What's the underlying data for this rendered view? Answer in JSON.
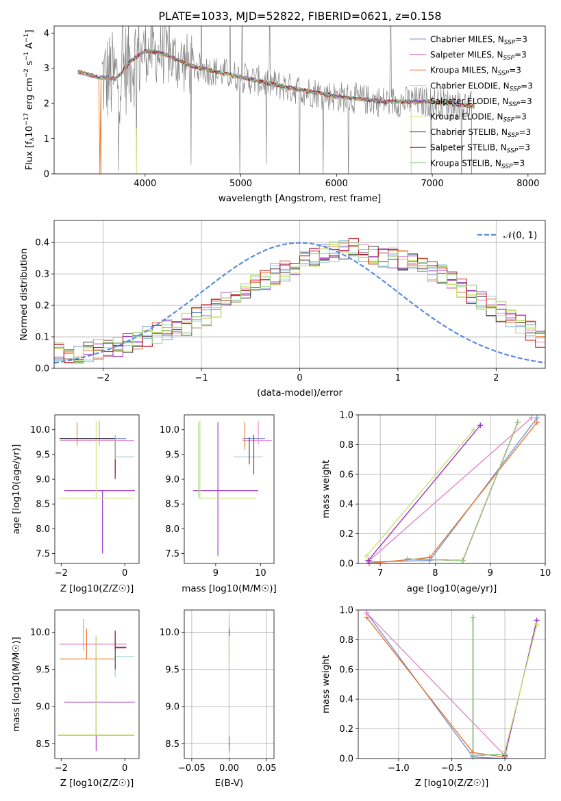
{
  "title": "PLATE=1033, MJD=52822, FIBERID=0621, z=0.158",
  "colors": {
    "chabrier_miles": "#6f94dc",
    "salpeter_miles": "#e286c5",
    "kroupa_miles": "#e8762b",
    "chabrier_elodie": "#8fcad6",
    "salpeter_elodie": "#9b30c5",
    "kroupa_elodie": "#c9e46f",
    "chabrier_stelib": "#3f3f3f",
    "salpeter_stelib": "#c0161f",
    "kroupa_stelib": "#9bd08a",
    "data": "#808080",
    "gaussian": "#5b8be0"
  },
  "chart_data": [
    {
      "id": "spectrum",
      "type": "line",
      "xlabel": "wavelength [Angstrom, rest frame]",
      "ylabel": "Flux [f_λ 10^-17 erg cm^-2 s^-1 A^-1]",
      "xlim": [
        3050,
        8180
      ],
      "ylim": [
        0,
        4.2
      ],
      "xticks": [
        "4000",
        "5000",
        "6000",
        "7000",
        "8000"
      ],
      "yticks": [
        "0",
        "1",
        "2",
        "3",
        "4"
      ],
      "legend": [
        {
          "label": "Chabrier MILES, N",
          "sub": "SSP",
          "tail": "=3",
          "color": "chabrier_miles"
        },
        {
          "label": "Salpeter MILES, N",
          "sub": "SSP",
          "tail": "=3",
          "color": "salpeter_miles"
        },
        {
          "label": "Kroupa MILES, N",
          "sub": "SSP",
          "tail": "=3",
          "color": "kroupa_miles"
        },
        {
          "label": "Chabrier ELODIE, N",
          "sub": "SSP",
          "tail": "=3",
          "color": "chabrier_elodie"
        },
        {
          "label": "Salpeter ELODIE, N",
          "sub": "SSP",
          "tail": "=3",
          "color": "salpeter_elodie"
        },
        {
          "label": "Kroupa ELODIE, N",
          "sub": "SSP",
          "tail": "=3",
          "color": "kroupa_elodie"
        },
        {
          "label": "Chabrier STELIB, N",
          "sub": "SSP",
          "tail": "=3",
          "color": "chabrier_stelib"
        },
        {
          "label": "Salpeter STELIB, N",
          "sub": "SSP",
          "tail": "=3",
          "color": "salpeter_stelib"
        },
        {
          "label": "Kroupa STELIB, N",
          "sub": "SSP",
          "tail": "=3",
          "color": "kroupa_stelib"
        }
      ],
      "legend_loc": "right",
      "model_curve": {
        "x": [
          3300,
          3500,
          3700,
          3850,
          3900,
          4000,
          4200,
          4500,
          5000,
          5500,
          6000,
          6500,
          7000,
          7500
        ],
        "y": [
          2.9,
          2.75,
          2.7,
          3.2,
          3.3,
          3.5,
          3.4,
          3.05,
          2.75,
          2.45,
          2.2,
          2.05,
          2.05,
          1.9
        ]
      },
      "miles_model_range": [
        3540,
        7410
      ],
      "data_range": [
        3550,
        7410
      ],
      "kroupa_elodie_low_range": [
        3910,
        6780
      ]
    },
    {
      "id": "residual_hist",
      "type": "line",
      "xlabel": "(data-model)/error",
      "ylabel": "Normed distribution",
      "xlim": [
        -2.5,
        2.5
      ],
      "ylim": [
        0,
        0.47
      ],
      "xticks": [
        "−2",
        "−1",
        "0",
        "1",
        "2"
      ],
      "yticks": [
        "0.0",
        "0.1",
        "0.2",
        "0.3",
        "0.4"
      ],
      "legend": [
        {
          "label": "𝒩(0, 1)",
          "color": "gaussian"
        }
      ],
      "legend_loc": "upper right",
      "bin_width": 0.1,
      "mean_hist": [
        0.05,
        0.04,
        0.05,
        0.05,
        0.06,
        0.06,
        0.07,
        0.08,
        0.09,
        0.1,
        0.11,
        0.12,
        0.13,
        0.14,
        0.16,
        0.17,
        0.19,
        0.21,
        0.23,
        0.25,
        0.27,
        0.28,
        0.3,
        0.31,
        0.33,
        0.34,
        0.35,
        0.36,
        0.37,
        0.38,
        0.38,
        0.37,
        0.36,
        0.35,
        0.35,
        0.34,
        0.33,
        0.32,
        0.31,
        0.3,
        0.28,
        0.26,
        0.24,
        0.22,
        0.2,
        0.18,
        0.16,
        0.14,
        0.12,
        0.1,
        0.09,
        0.08,
        0.07,
        0.06,
        0.05,
        0.05,
        0.04,
        0.04,
        0.03,
        0.03
      ]
    },
    {
      "id": "age_vs_Z",
      "type": "scatter",
      "xlabel": "Z [log10(Z/Z☉)]",
      "ylabel": "age  [log10(age/yr)]",
      "xlim": [
        -2.2,
        0.45
      ],
      "ylim": [
        7.3,
        10.3
      ],
      "xticks": [
        "−2",
        "0"
      ],
      "yticks": [
        "7.5",
        "8.0",
        "8.5",
        "9.0",
        "9.5",
        "10.0"
      ],
      "points": [
        {
          "m": "chabrier_miles",
          "x": -0.9,
          "y": 9.82,
          "xl": -2.05,
          "xr": 0.05,
          "yl": 9.82,
          "yh": 9.82
        },
        {
          "m": "salpeter_miles",
          "x": -0.8,
          "y": 9.78,
          "xl": -2.05,
          "xr": 0.3,
          "yl": 9.68,
          "yh": 10.18
        },
        {
          "m": "kroupa_miles",
          "x": -1.5,
          "y": 9.8,
          "xl": -1.5,
          "xr": -1.5,
          "yl": 9.68,
          "yh": 10.15
        },
        {
          "m": "chabrier_elodie",
          "x": -0.3,
          "y": 9.45,
          "xl": -0.3,
          "xr": 0.3,
          "yl": 9.1,
          "yh": 9.9
        },
        {
          "m": "salpeter_elodie",
          "x": -0.7,
          "y": 8.77,
          "xl": -1.9,
          "xr": 0.32,
          "yl": 7.5,
          "yh": 8.77
        },
        {
          "m": "kroupa_elodie",
          "x": -0.9,
          "y": 8.62,
          "xl": -2.1,
          "xr": 0.3,
          "yl": 8.62,
          "yh": 10.18
        },
        {
          "m": "chabrier_stelib",
          "x": -0.3,
          "y": 9.82,
          "xl": -2.05,
          "xr": -0.3,
          "yl": 9.0,
          "yh": 9.82
        },
        {
          "m": "salpeter_stelib",
          "x": -0.3,
          "y": 9.8,
          "xl": -0.3,
          "xr": -0.3,
          "yl": 9.05,
          "yh": 9.85
        },
        {
          "m": "kroupa_stelib",
          "x": -0.3,
          "y": 9.45,
          "xl": -0.3,
          "xr": -0.3,
          "yl": 9.4,
          "yh": 9.9
        }
      ]
    },
    {
      "id": "age_vs_mass",
      "type": "scatter",
      "xlabel": "mass [log10(M/M☉)]",
      "ylabel": "",
      "xlim": [
        8.3,
        10.3
      ],
      "ylim": [
        7.3,
        10.3
      ],
      "xticks": [
        "9",
        "10"
      ],
      "yticks": [
        "7.5",
        "8.0",
        "8.5",
        "9.0",
        "9.5",
        "10.0"
      ],
      "points": [
        {
          "m": "chabrier_miles",
          "x": 9.9,
          "y": 9.82,
          "xl": 9.6,
          "xr": 10.1,
          "yl": 9.82,
          "yh": 9.82
        },
        {
          "m": "salpeter_miles",
          "x": 9.95,
          "y": 9.78,
          "xl": 9.6,
          "xr": 10.25,
          "yl": 9.7,
          "yh": 10.18
        },
        {
          "m": "kroupa_miles",
          "x": 9.65,
          "y": 9.8,
          "xl": 9.65,
          "xr": 9.65,
          "yl": 9.6,
          "yh": 10.15
        },
        {
          "m": "chabrier_elodie",
          "x": 9.7,
          "y": 9.45,
          "xl": 9.4,
          "xr": 10.05,
          "yl": 9.45,
          "yh": 9.45
        },
        {
          "m": "salpeter_elodie",
          "x": 9.05,
          "y": 8.77,
          "xl": 8.5,
          "xr": 9.95,
          "yl": 7.45,
          "yh": 10.15
        },
        {
          "m": "kroupa_elodie",
          "x": 8.65,
          "y": 8.62,
          "xl": 8.65,
          "xr": 9.9,
          "yl": 8.62,
          "yh": 10.18
        },
        {
          "m": "chabrier_stelib",
          "x": 9.75,
          "y": 9.8,
          "xl": 9.75,
          "xr": 9.75,
          "yl": 9.3,
          "yh": 9.85
        },
        {
          "m": "salpeter_stelib",
          "x": 9.85,
          "y": 9.8,
          "xl": 9.85,
          "xr": 9.85,
          "yl": 9.1,
          "yh": 9.9
        },
        {
          "m": "kroupa_stelib",
          "x": 8.62,
          "y": 8.62,
          "xl": 8.62,
          "xr": 8.62,
          "yl": 8.62,
          "yh": 10.15
        }
      ]
    },
    {
      "id": "massweight_vs_age",
      "type": "line",
      "xlabel": "age  [log10(age/yr)]",
      "ylabel": "mass weight",
      "xlim": [
        6.6,
        10
      ],
      "ylim": [
        0,
        1
      ],
      "xticks": [
        "7",
        "8",
        "9",
        "10"
      ],
      "yticks": [
        "0.0",
        "0.2",
        "0.4",
        "0.6",
        "0.8",
        "1.0"
      ],
      "series": [
        {
          "m": "chabrier_miles",
          "x": [
            6.8,
            7.9,
            9.85
          ],
          "y": [
            0.01,
            0.02,
            0.98
          ]
        },
        {
          "m": "salpeter_miles",
          "x": [
            6.8,
            9.75
          ],
          "y": [
            0.02,
            0.98
          ]
        },
        {
          "m": "kroupa_miles",
          "x": [
            6.8,
            7.9,
            9.85
          ],
          "y": [
            0.0,
            0.04,
            0.95
          ]
        },
        {
          "m": "chabrier_elodie",
          "x": [
            7.5,
            8.5,
            9.5
          ],
          "y": [
            0.03,
            0.02,
            0.95
          ]
        },
        {
          "m": "salpeter_elodie",
          "x": [
            6.78,
            8.82
          ],
          "y": [
            0.02,
            0.93
          ]
        },
        {
          "m": "kroupa_elodie",
          "x": [
            6.75,
            8.7
          ],
          "y": [
            0.05,
            0.9
          ]
        },
        {
          "m": "chabrier_stelib",
          "x": [
            7.5,
            8.5,
            9.5
          ],
          "y": [
            0.03,
            0.02,
            0.95
          ]
        },
        {
          "m": "salpeter_stelib",
          "x": [
            7.5,
            8.5,
            9.5
          ],
          "y": [
            0.03,
            0.02,
            0.95
          ]
        },
        {
          "m": "kroupa_stelib",
          "x": [
            7.5,
            8.5,
            9.5
          ],
          "y": [
            0.03,
            0.02,
            0.95
          ]
        }
      ]
    },
    {
      "id": "mass_vs_Z",
      "type": "scatter",
      "xlabel": "Z [log10(Z/Z☉)]",
      "ylabel": "mass [log10(M/M☉)]",
      "xlim": [
        -2.2,
        0.45
      ],
      "ylim": [
        8.3,
        10.3
      ],
      "xticks": [
        "−2",
        "0"
      ],
      "yticks": [
        "8.5",
        "9.0",
        "9.5",
        "10.0"
      ],
      "points": [
        {
          "m": "chabrier_miles",
          "x": -0.9,
          "y": 9.84,
          "xl": -2.05,
          "xr": 0.05,
          "yl": 9.84,
          "yh": 9.84
        },
        {
          "m": "salpeter_miles",
          "x": -1.3,
          "y": 9.84,
          "xl": -2.05,
          "xr": 0.05,
          "yl": 9.75,
          "yh": 10.18
        },
        {
          "m": "kroupa_miles",
          "x": -1.2,
          "y": 9.64,
          "xl": -2.05,
          "xr": -0.3,
          "yl": 9.64,
          "yh": 10.05
        },
        {
          "m": "chabrier_elodie",
          "x": -0.3,
          "y": 9.67,
          "xl": -0.3,
          "xr": 0.3,
          "yl": 9.4,
          "yh": 9.9
        },
        {
          "m": "salpeter_elodie",
          "x": -0.9,
          "y": 9.06,
          "xl": -1.9,
          "xr": 0.32,
          "yl": 8.4,
          "yh": 9.95
        },
        {
          "m": "kroupa_elodie",
          "x": -0.9,
          "y": 8.62,
          "xl": -2.1,
          "xr": 0.3,
          "yl": 8.62,
          "yh": 9.95
        },
        {
          "m": "chabrier_stelib",
          "x": -0.3,
          "y": 9.8,
          "xl": -0.3,
          "xr": 0.05,
          "yl": 9.5,
          "yh": 10.02
        },
        {
          "m": "salpeter_stelib",
          "x": -0.3,
          "y": 9.79,
          "xl": -0.3,
          "xr": 0.05,
          "yl": 9.75,
          "yh": 10.02
        },
        {
          "m": "kroupa_stelib",
          "x": -0.9,
          "y": 8.61,
          "xl": -2.1,
          "xr": 0.3,
          "yl": 8.61,
          "yh": 8.61
        }
      ]
    },
    {
      "id": "mass_vs_EBV",
      "type": "scatter",
      "xlabel": "E(B-V)",
      "ylabel": "",
      "xlim": [
        -0.06,
        0.06
      ],
      "ylim": [
        8.3,
        10.3
      ],
      "xticks": [
        "−0.05",
        "0.00",
        "0.05"
      ],
      "yticks": [
        "8.5",
        "9.0",
        "9.5",
        "10.0"
      ],
      "points": [
        {
          "m": "salpeter_elodie",
          "x": 0.0,
          "y": 9.5,
          "xl": 0.0,
          "xr": 0.0,
          "yl": 8.4,
          "yh": 9.95
        },
        {
          "m": "salpeter_miles",
          "x": 0.0,
          "y": 9.9,
          "xl": 0.0,
          "xr": 0.0,
          "yl": 9.75,
          "yh": 10.18
        },
        {
          "m": "salpeter_stelib",
          "x": 0.0,
          "y": 9.8,
          "xl": 0.0,
          "xr": 0.0,
          "yl": 9.5,
          "yh": 10.05
        },
        {
          "m": "chabrier_elodie",
          "x": 0.0,
          "y": 9.6,
          "xl": 0.0,
          "xr": 0.0,
          "yl": 9.4,
          "yh": 9.95
        },
        {
          "m": "kroupa_elodie",
          "x": 0.0,
          "y": 9.2,
          "xl": 0.0,
          "xr": 0.0,
          "yl": 8.6,
          "yh": 9.95
        }
      ]
    },
    {
      "id": "massweight_vs_Z",
      "type": "line",
      "xlabel": "Z [log10(Z/Z☉)]",
      "ylabel": "mass weight",
      "xlim": [
        -1.38,
        0.38
      ],
      "ylim": [
        0,
        1
      ],
      "xticks": [
        "−1.0",
        "−0.5",
        "0.0"
      ],
      "yticks": [
        "0.0",
        "0.2",
        "0.4",
        "0.6",
        "0.8",
        "1.0"
      ],
      "series": [
        {
          "m": "chabrier_miles",
          "x": [
            -1.3,
            -0.3,
            0.0
          ],
          "y": [
            0.98,
            0.01,
            0.0
          ]
        },
        {
          "m": "salpeter_miles",
          "x": [
            -1.3,
            0.0
          ],
          "y": [
            0.98,
            0.02
          ]
        },
        {
          "m": "kroupa_miles",
          "x": [
            -1.3,
            -0.3,
            0.0
          ],
          "y": [
            0.95,
            0.04,
            0.01
          ]
        },
        {
          "m": "chabrier_elodie",
          "x": [
            -0.3,
            -0.3,
            0.0
          ],
          "y": [
            0.95,
            0.02,
            0.03
          ]
        },
        {
          "m": "salpeter_elodie",
          "x": [
            0.0,
            0.3
          ],
          "y": [
            0.02,
            0.93
          ]
        },
        {
          "m": "kroupa_elodie",
          "x": [
            0.0,
            0.3
          ],
          "y": [
            0.05,
            0.9
          ]
        },
        {
          "m": "chabrier_stelib",
          "x": [
            -0.3,
            -0.3,
            0.0
          ],
          "y": [
            0.95,
            0.02,
            0.03
          ]
        },
        {
          "m": "kroupa_stelib",
          "x": [
            -0.3,
            -0.3,
            0.0
          ],
          "y": [
            0.95,
            0.02,
            0.03
          ]
        }
      ]
    }
  ]
}
